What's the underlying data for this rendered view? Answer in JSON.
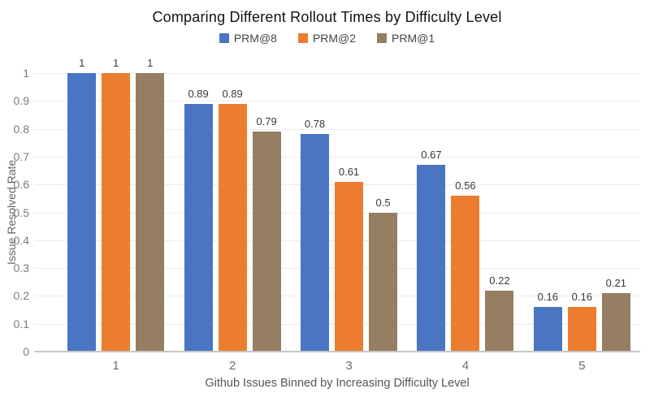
{
  "chart_data": {
    "type": "bar",
    "title": "Comparing Different Rollout Times by Difficulty Level",
    "xlabel": "Github Issues Binned by Increasing Difficulty Level",
    "ylabel": "Issue Resolved Rate",
    "categories": [
      "1",
      "2",
      "3",
      "4",
      "5"
    ],
    "series": [
      {
        "name": "PRM@8",
        "color": "#4A75C3",
        "values": [
          1,
          0.89,
          0.78,
          0.67,
          0.16
        ]
      },
      {
        "name": "PRM@2",
        "color": "#EC7D2F",
        "values": [
          1,
          0.89,
          0.61,
          0.56,
          0.16
        ]
      },
      {
        "name": "PRM@1",
        "color": "#967E62",
        "values": [
          1,
          0.79,
          0.5,
          0.22,
          0.21
        ]
      }
    ],
    "value_labels": [
      [
        "1",
        "0.89",
        "0.78",
        "0.67",
        "0.16"
      ],
      [
        "1",
        "0.89",
        "0.61",
        "0.56",
        "0.16"
      ],
      [
        "1",
        "0.79",
        "0.5",
        "0.22",
        "0.21"
      ]
    ],
    "ylim": [
      0,
      1
    ],
    "ytick_labels": [
      "0",
      "0.1",
      "0.2",
      "0.3",
      "0.4",
      "0.5",
      "0.6",
      "0.7",
      "0.8",
      "0.9",
      "1"
    ],
    "grid": "horizontal",
    "legend_position": "top-center"
  }
}
